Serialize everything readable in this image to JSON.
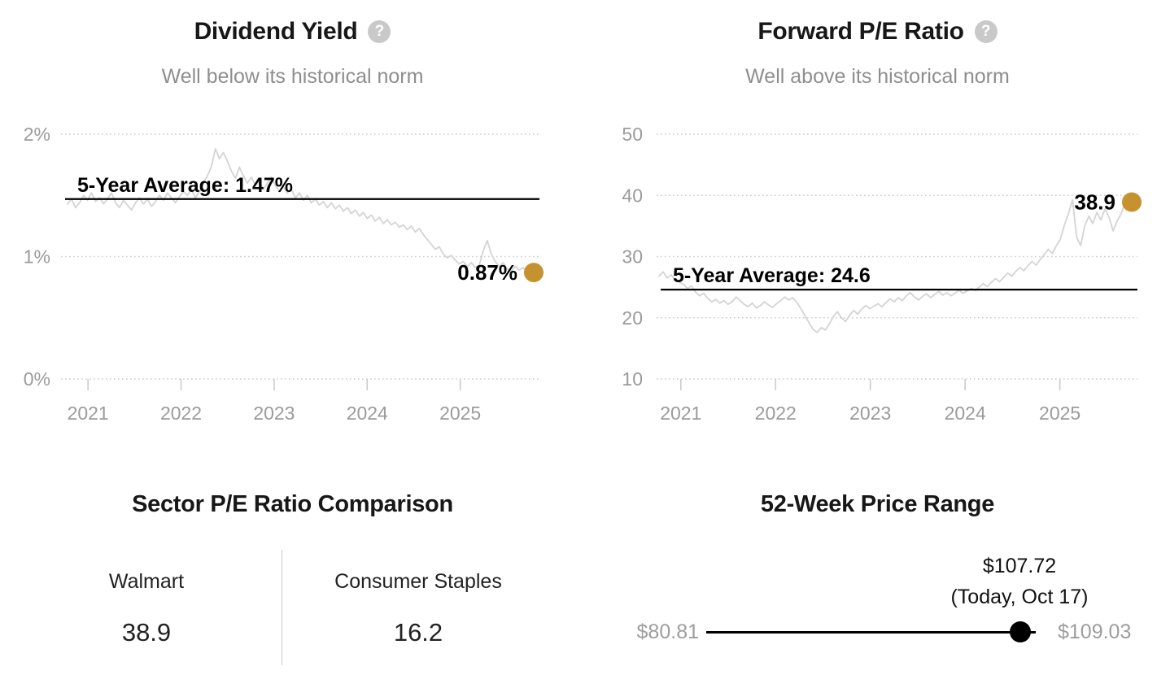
{
  "colors": {
    "accent_gold": "#c6922f",
    "series_line": "#d4d4d4",
    "grid": "#cccccc",
    "axis_text": "#9b9b9b",
    "average_line": "#000000",
    "label_text": "#000000",
    "muted_text": "#8e8e8e",
    "range_dot": "#000000"
  },
  "icons": {
    "question_glyph": "?"
  },
  "chart_data": [
    {
      "type": "line",
      "title": "Dividend Yield",
      "subtitle": "Well below its historical norm",
      "help_icon": "question-mark-icon",
      "grid": "dotted",
      "legend": "none",
      "y_ticks": {
        "values": [
          2,
          1,
          0
        ],
        "labels": [
          "2%",
          "1%",
          "0%"
        ]
      },
      "x_ticks": {
        "values": [
          2021,
          2022,
          2023,
          2024,
          2025
        ],
        "labels": [
          "2021",
          "2022",
          "2023",
          "2024",
          "2025"
        ]
      },
      "x_domain": [
        2020.78,
        2025.72
      ],
      "y_domain": [
        0,
        2
      ],
      "average": {
        "value": 1.47,
        "label": "5-Year Average: 1.47%"
      },
      "current": {
        "value": 0.87,
        "label": "0.87%"
      },
      "series": [
        1.43,
        1.47,
        1.4,
        1.44,
        1.5,
        1.46,
        1.52,
        1.45,
        1.48,
        1.43,
        1.47,
        1.52,
        1.44,
        1.4,
        1.46,
        1.42,
        1.38,
        1.44,
        1.48,
        1.43,
        1.47,
        1.41,
        1.45,
        1.5,
        1.46,
        1.52,
        1.48,
        1.44,
        1.49,
        1.53,
        1.5,
        1.55,
        1.48,
        1.53,
        1.6,
        1.66,
        1.74,
        1.88,
        1.8,
        1.85,
        1.78,
        1.7,
        1.64,
        1.73,
        1.66,
        1.6,
        1.65,
        1.58,
        1.62,
        1.55,
        1.6,
        1.65,
        1.58,
        1.53,
        1.57,
        1.52,
        1.55,
        1.48,
        1.52,
        1.46,
        1.5,
        1.44,
        1.47,
        1.42,
        1.45,
        1.4,
        1.44,
        1.39,
        1.42,
        1.37,
        1.4,
        1.35,
        1.38,
        1.33,
        1.36,
        1.31,
        1.34,
        1.29,
        1.32,
        1.27,
        1.3,
        1.26,
        1.28,
        1.24,
        1.26,
        1.22,
        1.25,
        1.2,
        1.23,
        1.18,
        1.14,
        1.1,
        1.06,
        1.08,
        1.02,
        0.99,
        1.01,
        0.97,
        0.94,
        0.96,
        0.92,
        0.95,
        0.91,
        0.93,
        1.05,
        1.13,
        1.02,
        0.96,
        0.92,
        0.95,
        0.9,
        0.88,
        0.92,
        0.89,
        0.91,
        0.87
      ]
    },
    {
      "type": "line",
      "title": "Forward P/E Ratio",
      "subtitle": "Well above its historical norm",
      "help_icon": "question-mark-icon",
      "grid": "dotted",
      "legend": "none",
      "y_ticks": {
        "values": [
          50,
          40,
          30,
          20,
          10
        ],
        "labels": [
          "50",
          "40",
          "30",
          "20",
          "10"
        ]
      },
      "x_ticks": {
        "values": [
          2021,
          2022,
          2023,
          2024,
          2025
        ],
        "labels": [
          "2021",
          "2022",
          "2023",
          "2024",
          "2025"
        ]
      },
      "x_domain": [
        2020.77,
        2025.69
      ],
      "y_domain": [
        10,
        50
      ],
      "average": {
        "value": 24.6,
        "label": "5-Year Average: 24.6"
      },
      "current": {
        "value": 38.9,
        "label": "38.9"
      },
      "series": [
        26.8,
        27.5,
        26.5,
        27.0,
        26.2,
        25.8,
        25.5,
        24.8,
        25.2,
        24.2,
        23.6,
        24.0,
        23.2,
        22.6,
        23.0,
        22.4,
        22.8,
        22.2,
        22.6,
        23.4,
        22.8,
        22.2,
        21.8,
        22.4,
        21.6,
        22.0,
        22.6,
        22.1,
        21.7,
        22.3,
        22.8,
        23.4,
        22.9,
        23.3,
        22.5,
        21.5,
        20.3,
        19.2,
        18.1,
        17.6,
        18.4,
        18.0,
        19.0,
        20.2,
        21.0,
        20.0,
        19.4,
        20.4,
        21.2,
        20.6,
        21.4,
        22.0,
        21.5,
        21.9,
        22.3,
        21.8,
        22.5,
        23.1,
        22.6,
        23.3,
        22.8,
        23.6,
        24.1,
        23.4,
        22.9,
        23.5,
        23.9,
        23.3,
        23.8,
        24.3,
        23.7,
        24.1,
        23.6,
        24.0,
        24.5,
        24.0,
        24.4,
        24.8,
        24.5,
        25.0,
        25.6,
        25.1,
        25.8,
        26.4,
        25.9,
        26.6,
        27.3,
        26.8,
        27.6,
        28.2,
        27.7,
        28.5,
        29.2,
        28.6,
        29.5,
        30.3,
        31.2,
        30.5,
        31.8,
        32.8,
        35.2,
        37.0,
        39.3,
        33.2,
        31.8,
        35.0,
        36.6,
        35.4,
        37.2,
        36.0,
        37.8,
        36.4,
        34.2,
        35.8,
        37.0,
        38.9
      ]
    }
  ],
  "sector_comparison": {
    "title": "Sector P/E Ratio Comparison",
    "items": [
      {
        "label": "Walmart",
        "value": "38.9"
      },
      {
        "label": "Consumer Staples",
        "value": "16.2"
      }
    ]
  },
  "price_range": {
    "title": "52-Week Price Range",
    "low": 80.81,
    "high": 109.03,
    "current": 107.72,
    "low_label": "$80.81",
    "high_label": "$109.03",
    "current_label": "$107.72",
    "current_sublabel": "(Today, Oct 17)"
  }
}
